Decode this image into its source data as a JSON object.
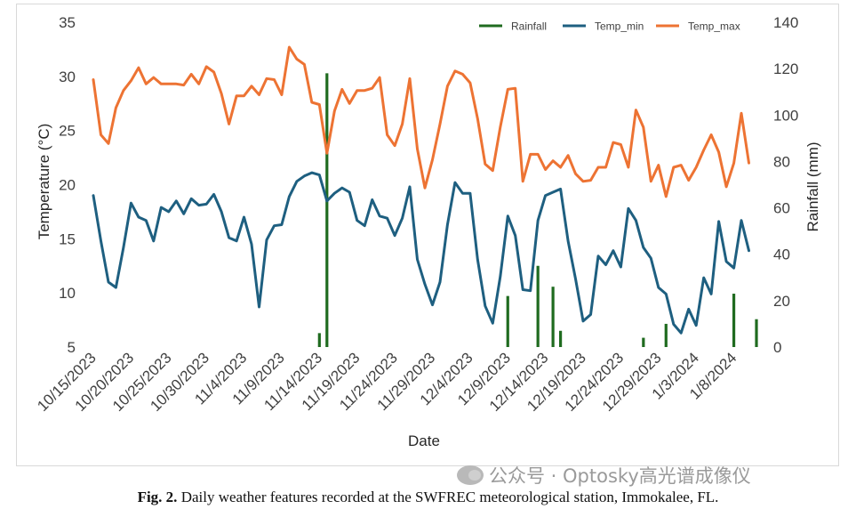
{
  "chart_data": {
    "type": "line",
    "title": "",
    "xlabel": "Date",
    "ylabel": "Temperature (°C)",
    "y2label": "Rainfall (mm)",
    "ylim": [
      5,
      35
    ],
    "y2lim": [
      0,
      140
    ],
    "yticks": [
      5,
      10,
      15,
      20,
      25,
      30,
      35
    ],
    "y2ticks": [
      0,
      20,
      40,
      60,
      80,
      100,
      120,
      140
    ],
    "x_start": "10/15/2023",
    "x_end": "1/11/2024",
    "xticks": [
      "10/15/2023",
      "10/20/2023",
      "10/25/2023",
      "10/30/2023",
      "11/4/2023",
      "11/9/2023",
      "11/14/2023",
      "11/19/2023",
      "11/24/2023",
      "11/29/2023",
      "12/4/2023",
      "12/9/2023",
      "12/14/2023",
      "12/19/2023",
      "12/24/2023",
      "12/29/2023",
      "1/3/2024",
      "1/8/2024"
    ],
    "grid": false,
    "legend_position": "top-right",
    "series": [
      {
        "name": "Rainfall",
        "type": "bar",
        "axis": "right",
        "color": "#1f6b1f",
        "x": [
          "11/14/2023",
          "11/15/2023",
          "12/9/2023",
          "12/13/2023",
          "12/15/2023",
          "12/16/2023",
          "12/27/2023",
          "12/30/2023",
          "1/8/2024",
          "1/11/2024"
        ],
        "values": [
          6,
          118,
          22,
          35,
          26,
          7,
          4,
          10,
          23,
          12
        ]
      },
      {
        "name": "Temp_min",
        "type": "line",
        "axis": "left",
        "color": "#1e5f80",
        "values": [
          19.0,
          14.8,
          11.0,
          10.5,
          14.2,
          18.3,
          17.0,
          16.7,
          14.8,
          17.9,
          17.5,
          18.5,
          17.3,
          18.7,
          18.1,
          18.2,
          19.1,
          17.5,
          15.1,
          14.8,
          17.0,
          14.5,
          8.7,
          14.9,
          16.2,
          16.3,
          18.9,
          20.3,
          20.8,
          21.1,
          20.9,
          18.5,
          19.2,
          19.7,
          19.3,
          16.7,
          16.2,
          18.6,
          17.1,
          16.9,
          15.3,
          16.9,
          19.8,
          13.1,
          10.8,
          8.9,
          11.0,
          16.3,
          20.2,
          19.2,
          19.2,
          13.1,
          8.8,
          7.2,
          11.5,
          17.1,
          15.3,
          10.3,
          10.2,
          16.7,
          19.0,
          19.3,
          19.6,
          14.8,
          11.3,
          7.4,
          8.0,
          13.4,
          12.6,
          13.9,
          12.4,
          17.8,
          16.7,
          14.2,
          13.2,
          10.5,
          9.9,
          7.1,
          6.3,
          8.5,
          7.0,
          11.4,
          9.9,
          16.6,
          12.9,
          12.3,
          16.7,
          13.9
        ],
        "note": "daily from 10/15/2023 to 1/11/2024"
      },
      {
        "name": "Temp_max",
        "type": "line",
        "axis": "left",
        "color": "#ed7333",
        "values": [
          29.7,
          24.6,
          23.8,
          27.1,
          28.7,
          29.6,
          30.8,
          29.3,
          29.9,
          29.3,
          29.3,
          29.3,
          29.2,
          30.2,
          29.3,
          30.9,
          30.4,
          28.4,
          25.6,
          28.2,
          28.2,
          29.1,
          28.3,
          29.8,
          29.7,
          28.3,
          32.7,
          31.6,
          31.1,
          27.6,
          27.4,
          22.9,
          26.8,
          28.8,
          27.5,
          28.7,
          28.7,
          28.9,
          29.9,
          24.6,
          23.6,
          25.6,
          29.8,
          23.3,
          19.7,
          22.3,
          25.6,
          29.1,
          30.5,
          30.2,
          29.4,
          26.1,
          21.9,
          21.3,
          25.3,
          28.8,
          28.9,
          20.3,
          22.8,
          22.8,
          21.4,
          22.2,
          21.6,
          22.7,
          21.0,
          20.3,
          20.4,
          21.6,
          21.6,
          23.9,
          23.7,
          21.6,
          26.9,
          25.3,
          20.3,
          21.8,
          18.9,
          21.6,
          21.8,
          20.4,
          21.6,
          23.2,
          24.6,
          23.0,
          19.8,
          22.0,
          26.6,
          22.0
        ],
        "note": "daily from 10/15/2023 to 1/11/2024"
      }
    ],
    "annotations": []
  },
  "watermark_text": "公众号 · Optosky高光谱成像仪",
  "caption": {
    "label": "Fig. 2.",
    "text": "Daily weather features recorded at the SWFREC meteorological station, Immokalee, FL."
  }
}
